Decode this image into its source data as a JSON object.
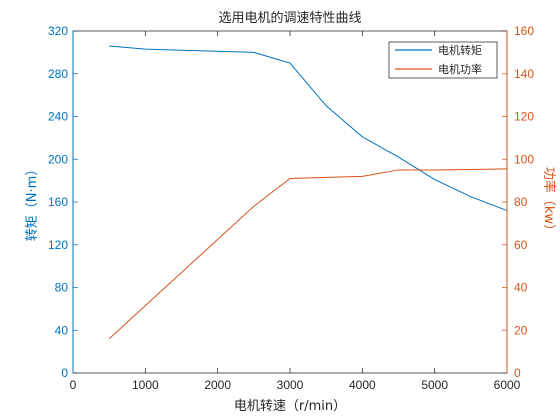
{
  "chart_data": {
    "type": "line",
    "title": "选用电机的调速特性曲线",
    "xlabel": "电机转速（r/min）",
    "ylabel_left": "转矩（N·m）",
    "ylabel_right": "功率（kw）",
    "xlim": [
      0,
      6000
    ],
    "ylim_left": [
      0,
      320
    ],
    "ylim_right": [
      0,
      160
    ],
    "x_ticks": [
      "0",
      "1000",
      "2000",
      "3000",
      "4000",
      "5000",
      "6000"
    ],
    "y_left_ticks": [
      "0",
      "40",
      "80",
      "120",
      "160",
      "200",
      "240",
      "280",
      "320"
    ],
    "y_right_ticks": [
      "0",
      "20",
      "40",
      "60",
      "80",
      "100",
      "120",
      "140",
      "160"
    ],
    "grid": false,
    "legend_position": "top-right",
    "colors": {
      "left_axis": "#0072bd",
      "right_axis": "#d95319",
      "axis_dark": "#262626"
    },
    "series": [
      {
        "name": "电机转矩",
        "axis": "left",
        "color": "#0072bd",
        "x": [
          500,
          1000,
          1500,
          2000,
          2500,
          3000,
          3500,
          4000,
          4500,
          5000,
          5500,
          6000
        ],
        "y": [
          306,
          303,
          302,
          301,
          300,
          290,
          250,
          221,
          202,
          181,
          165,
          152
        ]
      },
      {
        "name": "电机功率",
        "axis": "right",
        "color": "#d95319",
        "x": [
          500,
          2500,
          3000,
          3500,
          4000,
          4500,
          5000,
          5500,
          6000
        ],
        "y": [
          16,
          78,
          91,
          91.5,
          92,
          95,
          95,
          95.2,
          95.5
        ]
      }
    ]
  }
}
